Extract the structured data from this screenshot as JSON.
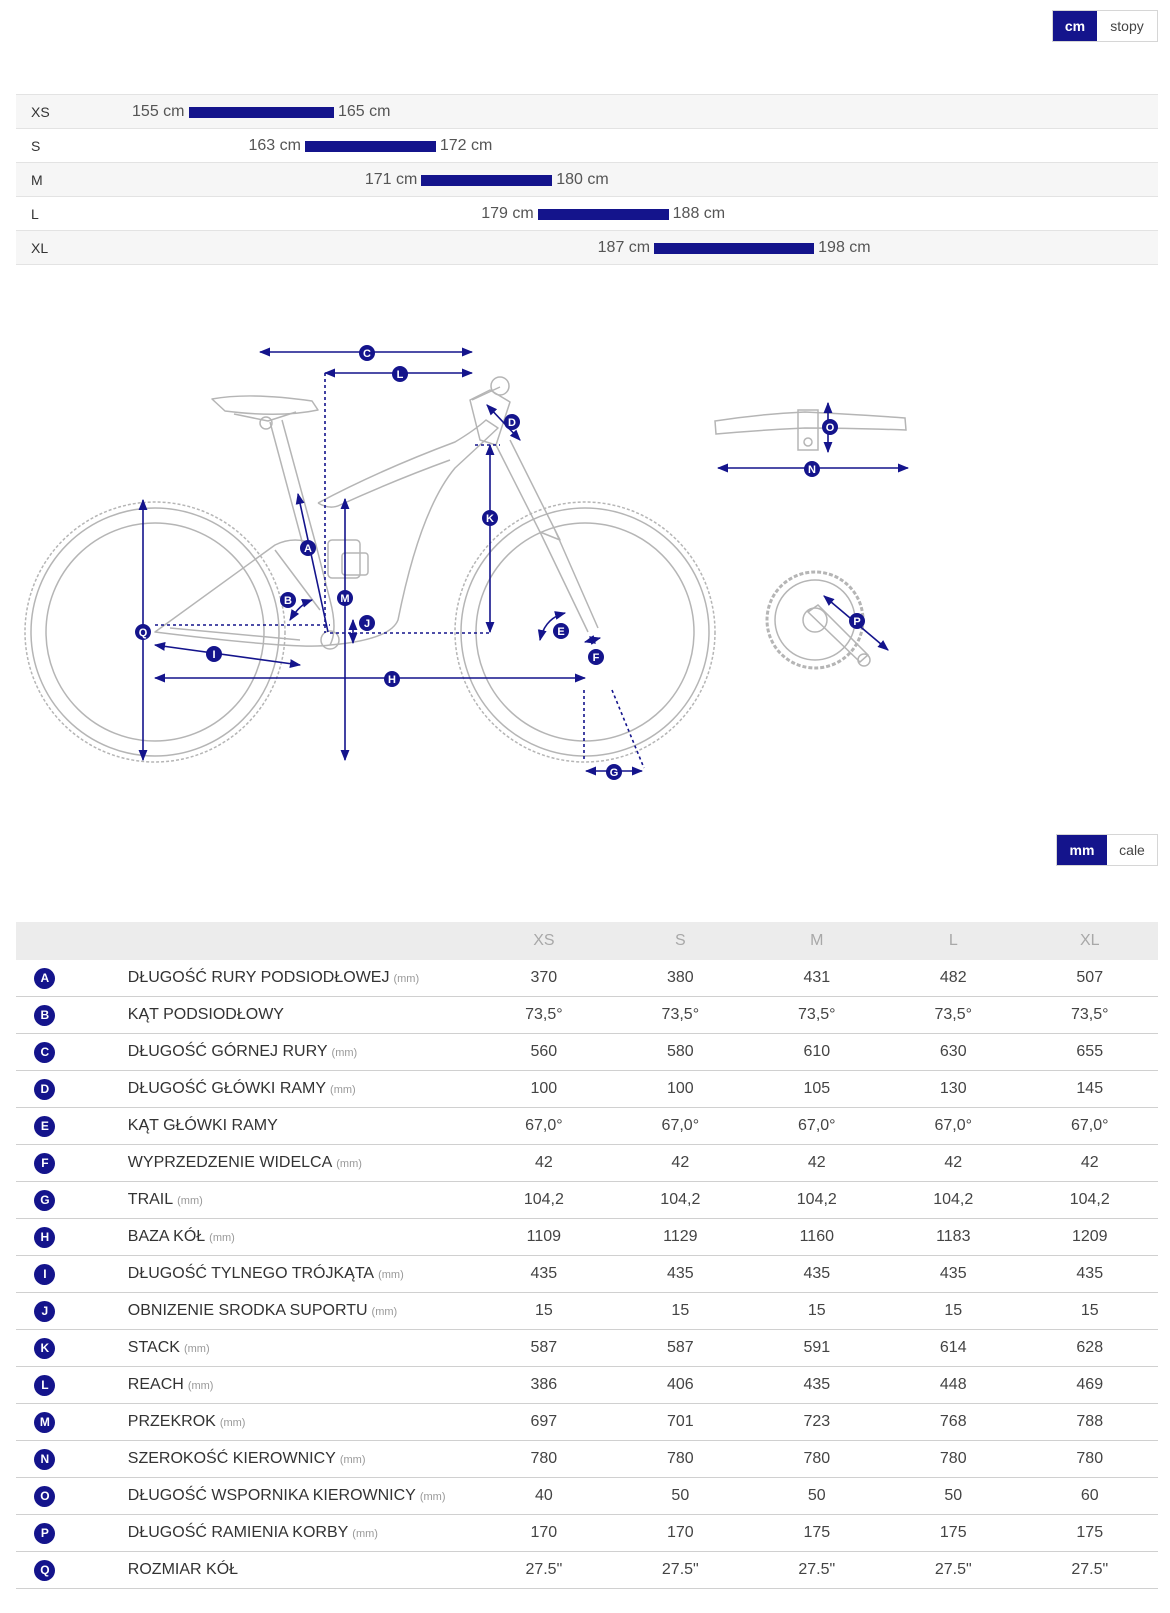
{
  "height_units": {
    "options": [
      "cm",
      "stopy"
    ],
    "selected": "cm"
  },
  "size_ranges": [
    {
      "size": "XS",
      "min": "155 cm",
      "max": "165 cm",
      "min_cm": 155,
      "max_cm": 165
    },
    {
      "size": "S",
      "min": "163 cm",
      "max": "172 cm",
      "min_cm": 163,
      "max_cm": 172
    },
    {
      "size": "M",
      "min": "171 cm",
      "max": "180 cm",
      "min_cm": 171,
      "max_cm": 180
    },
    {
      "size": "L",
      "min": "179 cm",
      "max": "188 cm",
      "min_cm": 179,
      "max_cm": 188
    },
    {
      "size": "XL",
      "min": "187 cm",
      "max": "198 cm",
      "min_cm": 187,
      "max_cm": 198
    }
  ],
  "diagram": {
    "labels": [
      "A",
      "B",
      "C",
      "D",
      "E",
      "F",
      "G",
      "H",
      "I",
      "J",
      "K",
      "L",
      "M",
      "N",
      "O",
      "P",
      "Q"
    ],
    "accent_color": "#14148c",
    "outline_color": "#b5b5b5"
  },
  "geometry_units": {
    "options": [
      "mm",
      "cale"
    ],
    "selected": "mm"
  },
  "geometry": {
    "sizes": [
      "XS",
      "S",
      "M",
      "L",
      "XL"
    ],
    "rows": [
      {
        "letter": "A",
        "name": "DŁUGOŚĆ RURY PODSIODŁOWEJ",
        "unit": "(mm)",
        "values": [
          "370",
          "380",
          "431",
          "482",
          "507"
        ]
      },
      {
        "letter": "B",
        "name": "KĄT PODSIODŁOWY",
        "unit": "",
        "values": [
          "73,5°",
          "73,5°",
          "73,5°",
          "73,5°",
          "73,5°"
        ]
      },
      {
        "letter": "C",
        "name": "DŁUGOŚĆ GÓRNEJ RURY",
        "unit": "(mm)",
        "values": [
          "560",
          "580",
          "610",
          "630",
          "655"
        ]
      },
      {
        "letter": "D",
        "name": "DŁUGOŚĆ GŁÓWKI RAMY",
        "unit": "(mm)",
        "values": [
          "100",
          "100",
          "105",
          "130",
          "145"
        ]
      },
      {
        "letter": "E",
        "name": "KĄT GŁÓWKI RAMY",
        "unit": "",
        "values": [
          "67,0°",
          "67,0°",
          "67,0°",
          "67,0°",
          "67,0°"
        ]
      },
      {
        "letter": "F",
        "name": "WYPRZEDZENIE WIDELCA",
        "unit": "(mm)",
        "values": [
          "42",
          "42",
          "42",
          "42",
          "42"
        ]
      },
      {
        "letter": "G",
        "name": "TRAIL",
        "unit": "(mm)",
        "values": [
          "104,2",
          "104,2",
          "104,2",
          "104,2",
          "104,2"
        ]
      },
      {
        "letter": "H",
        "name": "BAZA KÓŁ",
        "unit": "(mm)",
        "values": [
          "1109",
          "1129",
          "1160",
          "1183",
          "1209"
        ]
      },
      {
        "letter": "I",
        "name": "DŁUGOŚĆ TYLNEGO TRÓJKĄTA",
        "unit": "(mm)",
        "values": [
          "435",
          "435",
          "435",
          "435",
          "435"
        ]
      },
      {
        "letter": "J",
        "name": "OBNIZENIE SRODKA SUPORTU",
        "unit": "(mm)",
        "values": [
          "15",
          "15",
          "15",
          "15",
          "15"
        ]
      },
      {
        "letter": "K",
        "name": "STACK",
        "unit": "(mm)",
        "values": [
          "587",
          "587",
          "591",
          "614",
          "628"
        ]
      },
      {
        "letter": "L",
        "name": "REACH",
        "unit": "(mm)",
        "values": [
          "386",
          "406",
          "435",
          "448",
          "469"
        ]
      },
      {
        "letter": "M",
        "name": "PRZEKROK",
        "unit": "(mm)",
        "values": [
          "697",
          "701",
          "723",
          "768",
          "788"
        ]
      },
      {
        "letter": "N",
        "name": "SZEROKOŚĆ KIEROWNICY",
        "unit": "(mm)",
        "values": [
          "780",
          "780",
          "780",
          "780",
          "780"
        ]
      },
      {
        "letter": "O",
        "name": "DŁUGOŚĆ WSPORNIKA KIEROWNICY",
        "unit": "(mm)",
        "values": [
          "40",
          "50",
          "50",
          "50",
          "60"
        ]
      },
      {
        "letter": "P",
        "name": "DŁUGOŚĆ RAMIENIA KORBY",
        "unit": "(mm)",
        "values": [
          "170",
          "170",
          "175",
          "175",
          "175"
        ]
      },
      {
        "letter": "Q",
        "name": "ROZMIAR KÓŁ",
        "unit": "",
        "values": [
          "27.5\"",
          "27.5\"",
          "27.5\"",
          "27.5\"",
          "27.5\""
        ]
      }
    ]
  }
}
